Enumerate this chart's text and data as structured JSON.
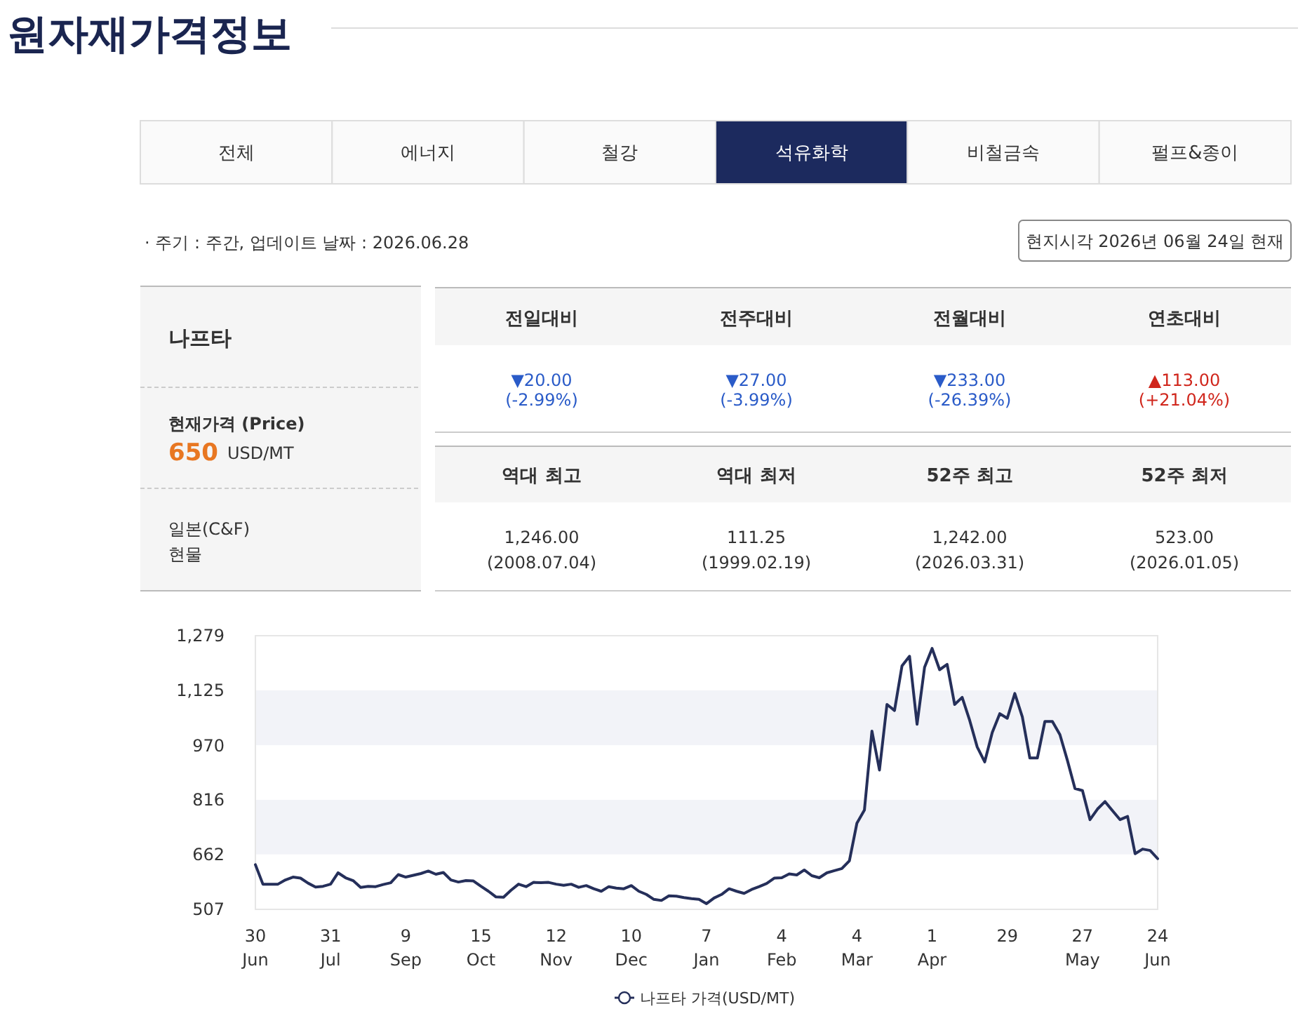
{
  "chart_data": [
    {
      "type": "other",
      "title": "원자재가격정보",
      "annotations": [
        "· 주기 : 주간, 업데이트 날짜 : 2026.06.28",
        "현지시각 2026년 06월 24일 현재",
        "전체",
        "에너지",
        "철강",
        "석유화학",
        "비철금속",
        "펄프&종이",
        "나프타",
        "현재가격 (Price)",
        "650",
        "USD/MT",
        "일본(C&F)",
        "현물",
        "전일대비",
        "전주대비",
        "전월대비",
        "연초대비",
        "▼20.00",
        "(-2.99%)",
        "▼27.00",
        "(-3.99%)",
        "▼233.00",
        "(-26.39%)",
        "▲113.00",
        "(+21.04%)",
        "역대 최고",
        "역대 최저",
        "52주 최고",
        "52주 최저",
        "1,246.00",
        "(2008.07.04)",
        "111.25",
        "(1999.02.19)",
        "1,242.00",
        "(2026.03.31)",
        "523.00",
        "(2026.01.05)"
      ]
    },
    {
      "type": "line",
      "ylim": [
        507,
        1279
      ],
      "categories": [
        "30 Jun",
        null,
        null,
        null,
        null,
        null,
        null,
        null,
        null,
        null,
        "31 Jul",
        null,
        null,
        null,
        null,
        null,
        null,
        null,
        null,
        null,
        "9 Sep",
        null,
        null,
        null,
        null,
        null,
        null,
        null,
        null,
        null,
        "15 Oct",
        null,
        null,
        null,
        null,
        null,
        null,
        null,
        null,
        null,
        "12 Nov",
        null,
        null,
        null,
        null,
        null,
        null,
        null,
        null,
        null,
        "10 Dec",
        null,
        null,
        null,
        null,
        null,
        null,
        null,
        null,
        null,
        "7 Jan",
        null,
        null,
        null,
        null,
        null,
        null,
        null,
        null,
        null,
        "4 Feb",
        null,
        null,
        null,
        null,
        null,
        null,
        null,
        null,
        null,
        "4 Mar",
        null,
        null,
        null,
        null,
        null,
        null,
        null,
        null,
        null,
        "1 Apr",
        null,
        null,
        null,
        null,
        null,
        null,
        null,
        null,
        null,
        "29",
        null,
        null,
        null,
        null,
        null,
        null,
        null,
        null,
        null,
        "27 May",
        null,
        null,
        null,
        null,
        null,
        null,
        null,
        null,
        null,
        "24 Jun"
      ],
      "yticks": [
        507,
        662,
        816,
        970,
        {
          "value": 1125,
          "label": "1,125"
        },
        {
          "value": 1279,
          "label": "1,279"
        }
      ],
      "bands": [
        {
          "axis": "y",
          "from": 662,
          "to": 816,
          "color": "#f2f3f8"
        },
        {
          "axis": "y",
          "from": 970,
          "to": 1125,
          "color": "#f2f3f8"
        }
      ],
      "legend": "bottom",
      "grid": false,
      "marker": "none",
      "line_style": "solid",
      "series": [
        {
          "name": "나프타 가격(USD/MT)",
          "color": "#252f5a",
          "values": [
            633,
            578,
            578,
            578,
            590,
            598,
            595,
            581,
            570,
            572,
            578,
            610,
            596,
            588,
            569,
            572,
            571,
            577,
            582,
            605,
            598,
            603,
            608,
            615,
            606,
            611,
            590,
            584,
            588,
            587,
            572,
            558,
            542,
            541,
            561,
            578,
            571,
            583,
            582,
            583,
            578,
            575,
            578,
            569,
            574,
            565,
            558,
            571,
            567,
            565,
            574,
            558,
            549,
            535,
            532,
            545,
            544,
            540,
            537,
            535,
            523,
            539,
            549,
            565,
            558,
            552,
            563,
            571,
            580,
            595,
            596,
            607,
            604,
            618,
            602,
            596,
            610,
            616,
            622,
            644,
            750,
            787,
            1010,
            900,
            1085,
            1068,
            1194,
            1221,
            1029,
            1190,
            1243,
            1183,
            1198,
            1085,
            1105,
            1040,
            965,
            923,
            1006,
            1059,
            1046,
            1116,
            1050,
            934,
            934,
            1037,
            1037,
            1000,
            927,
            848,
            842,
            760,
            790,
            811,
            785,
            760,
            769,
            664,
            677,
            673,
            650
          ]
        }
      ]
    }
  ]
}
